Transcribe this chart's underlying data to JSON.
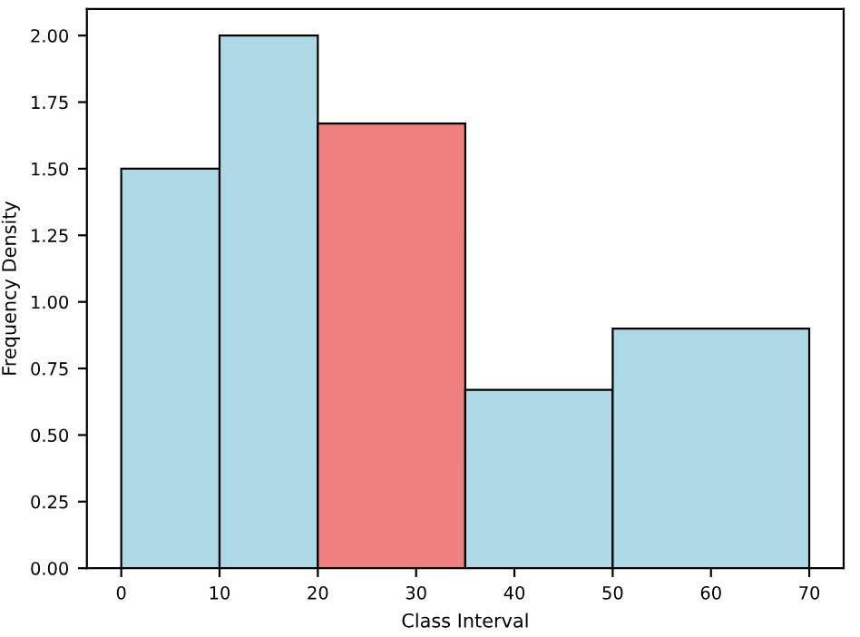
{
  "chart_data": {
    "type": "histogram",
    "xlabel": "Class Interval",
    "ylabel": "Frequency Density",
    "bins": [
      0,
      10,
      20,
      35,
      50,
      70
    ],
    "values": [
      1.5,
      2.0,
      1.67,
      0.67,
      0.9
    ],
    "colors": [
      "#add8e6",
      "#add8e6",
      "#f08080",
      "#add8e6",
      "#add8e6"
    ],
    "xlim": [
      -3.5,
      73.5
    ],
    "xticks": [
      0,
      10,
      20,
      30,
      40,
      50,
      60,
      70
    ],
    "ylim": [
      0,
      2.1
    ],
    "yticks": [
      {
        "value": 0,
        "label": "0.00"
      },
      {
        "value": 0.25,
        "label": "0.25"
      },
      {
        "value": 0.5,
        "label": "0.50"
      },
      {
        "value": 0.75,
        "label": "0.75"
      },
      {
        "value": 1.0,
        "label": "1.00"
      },
      {
        "value": 1.25,
        "label": "1.25"
      },
      {
        "value": 1.5,
        "label": "1.50"
      },
      {
        "value": 1.75,
        "label": "1.75"
      },
      {
        "value": 2.0,
        "label": "2.00"
      }
    ],
    "grid": false
  }
}
